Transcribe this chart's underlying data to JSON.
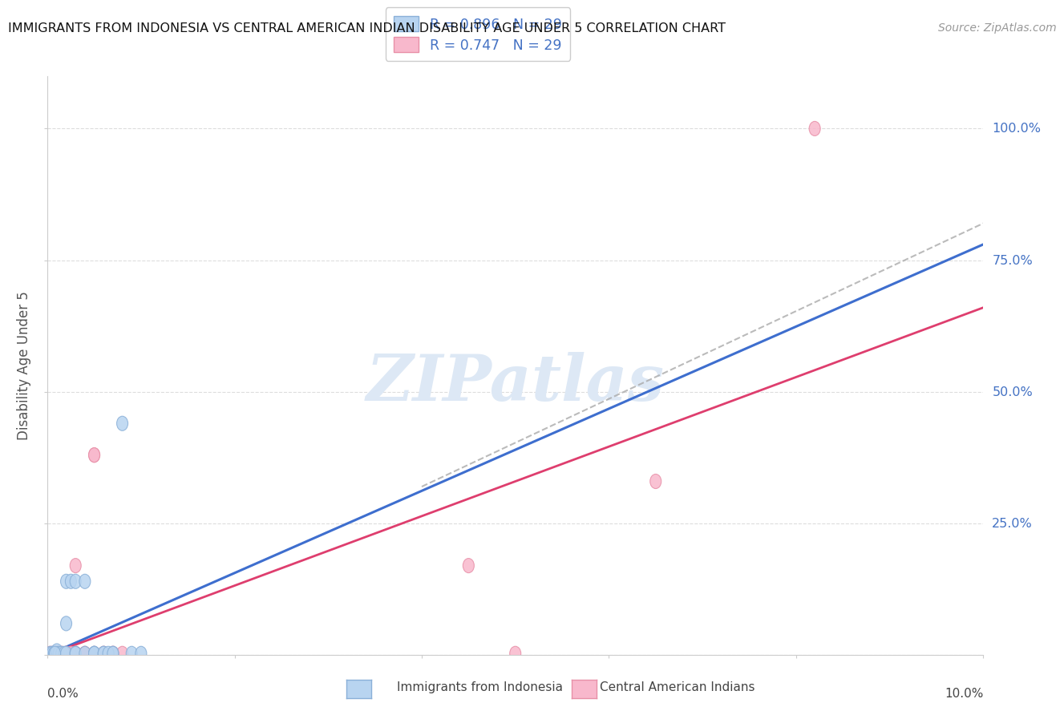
{
  "title": "IMMIGRANTS FROM INDONESIA VS CENTRAL AMERICAN INDIAN DISABILITY AGE UNDER 5 CORRELATION CHART",
  "source": "Source: ZipAtlas.com",
  "ylabel": "Disability Age Under 5",
  "blue_label": "Immigrants from Indonesia",
  "pink_label": "Central American Indians",
  "blue_R": "0.896",
  "blue_N": "29",
  "pink_R": "0.747",
  "pink_N": "29",
  "blue_scatter_color": "#b8d4f0",
  "blue_scatter_edge": "#8ab0d8",
  "pink_scatter_color": "#f8b8cc",
  "pink_scatter_edge": "#e890a8",
  "blue_line_color": "#3366cc",
  "pink_line_color": "#dd3366",
  "dash_line_color": "#aaaaaa",
  "grid_color": "#dddddd",
  "right_label_color": "#4472c4",
  "watermark_color": "#dde8f5",
  "title_color": "#111111",
  "source_color": "#999999",
  "xlim": [
    0.0,
    0.1
  ],
  "ylim": [
    0.0,
    1.1
  ],
  "yticks": [
    0.0,
    0.25,
    0.5,
    0.75,
    1.0
  ],
  "ytick_labels": [
    "",
    "25.0%",
    "50.0%",
    "75.0%",
    "100.0%"
  ],
  "blue_x": [
    0.0003,
    0.0005,
    0.0007,
    0.001,
    0.001,
    0.0012,
    0.0015,
    0.0018,
    0.002,
    0.002,
    0.002,
    0.0025,
    0.003,
    0.003,
    0.003,
    0.004,
    0.004,
    0.005,
    0.005,
    0.005,
    0.006,
    0.006,
    0.007,
    0.0065,
    0.007,
    0.008,
    0.009,
    0.01,
    0.0008
  ],
  "blue_y": [
    0.003,
    0.003,
    0.003,
    0.003,
    0.008,
    0.003,
    0.003,
    0.003,
    0.003,
    0.06,
    0.14,
    0.14,
    0.003,
    0.14,
    0.003,
    0.003,
    0.14,
    0.003,
    0.003,
    0.003,
    0.003,
    0.003,
    0.003,
    0.003,
    0.003,
    0.44,
    0.003,
    0.003,
    0.003
  ],
  "pink_x": [
    0.0003,
    0.0005,
    0.0007,
    0.001,
    0.001,
    0.0012,
    0.0015,
    0.002,
    0.002,
    0.003,
    0.003,
    0.003,
    0.004,
    0.004,
    0.005,
    0.005,
    0.005,
    0.006,
    0.006,
    0.007,
    0.007,
    0.008,
    0.065,
    0.045,
    0.05,
    0.082,
    0.0008,
    0.0015,
    0.0025
  ],
  "pink_y": [
    0.003,
    0.003,
    0.003,
    0.003,
    0.003,
    0.003,
    0.003,
    0.003,
    0.003,
    0.003,
    0.17,
    0.003,
    0.003,
    0.003,
    0.003,
    0.38,
    0.38,
    0.003,
    0.003,
    0.003,
    0.003,
    0.003,
    0.33,
    0.17,
    0.003,
    1.0,
    0.003,
    0.003,
    0.003
  ],
  "blue_trend_x0": 0.0,
  "blue_trend_y0": 0.0,
  "blue_trend_x1": 0.1,
  "blue_trend_y1": 0.78,
  "pink_trend_x0": 0.0,
  "pink_trend_y0": 0.0,
  "pink_trend_x1": 0.1,
  "pink_trend_y1": 0.66,
  "dash_trend_x0": 0.04,
  "dash_trend_y0": 0.32,
  "dash_trend_x1": 0.1,
  "dash_trend_y1": 0.82
}
